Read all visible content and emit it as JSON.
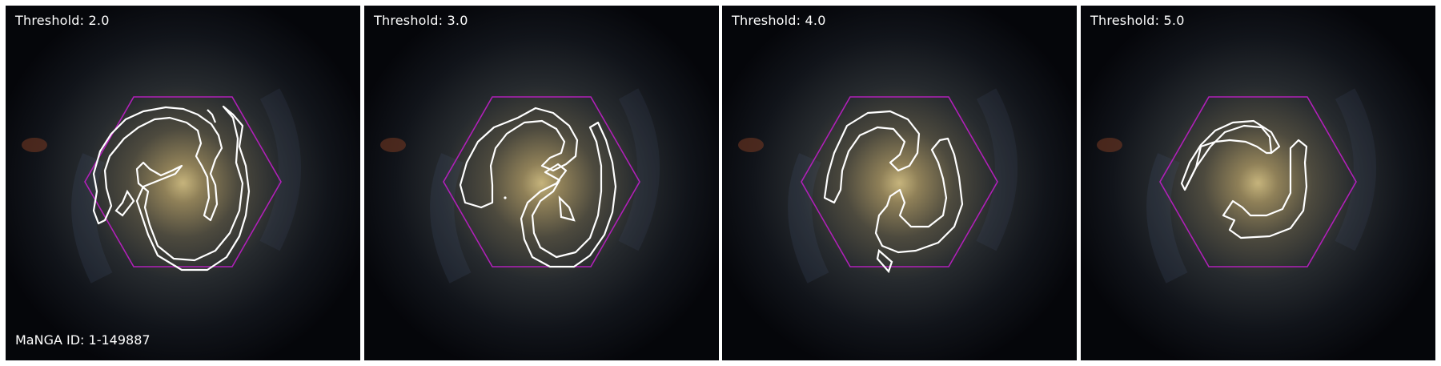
{
  "panels": [
    {
      "label": "Threshold: 2.0"
    },
    {
      "label": "Threshold: 3.0"
    },
    {
      "label": "Threshold: 4.0"
    },
    {
      "label": "Threshold: 5.0"
    }
  ],
  "galaxy_id_label": "MaNGA ID: 1-149887",
  "colors": {
    "hexagon": "#b020b8",
    "contour": "#ffffff",
    "background": "#05060a",
    "core": "#c8b57a"
  },
  "icons": {
    "hexagon": "ifu-hexagon-outline",
    "contour": "spiral-arm-contour"
  }
}
